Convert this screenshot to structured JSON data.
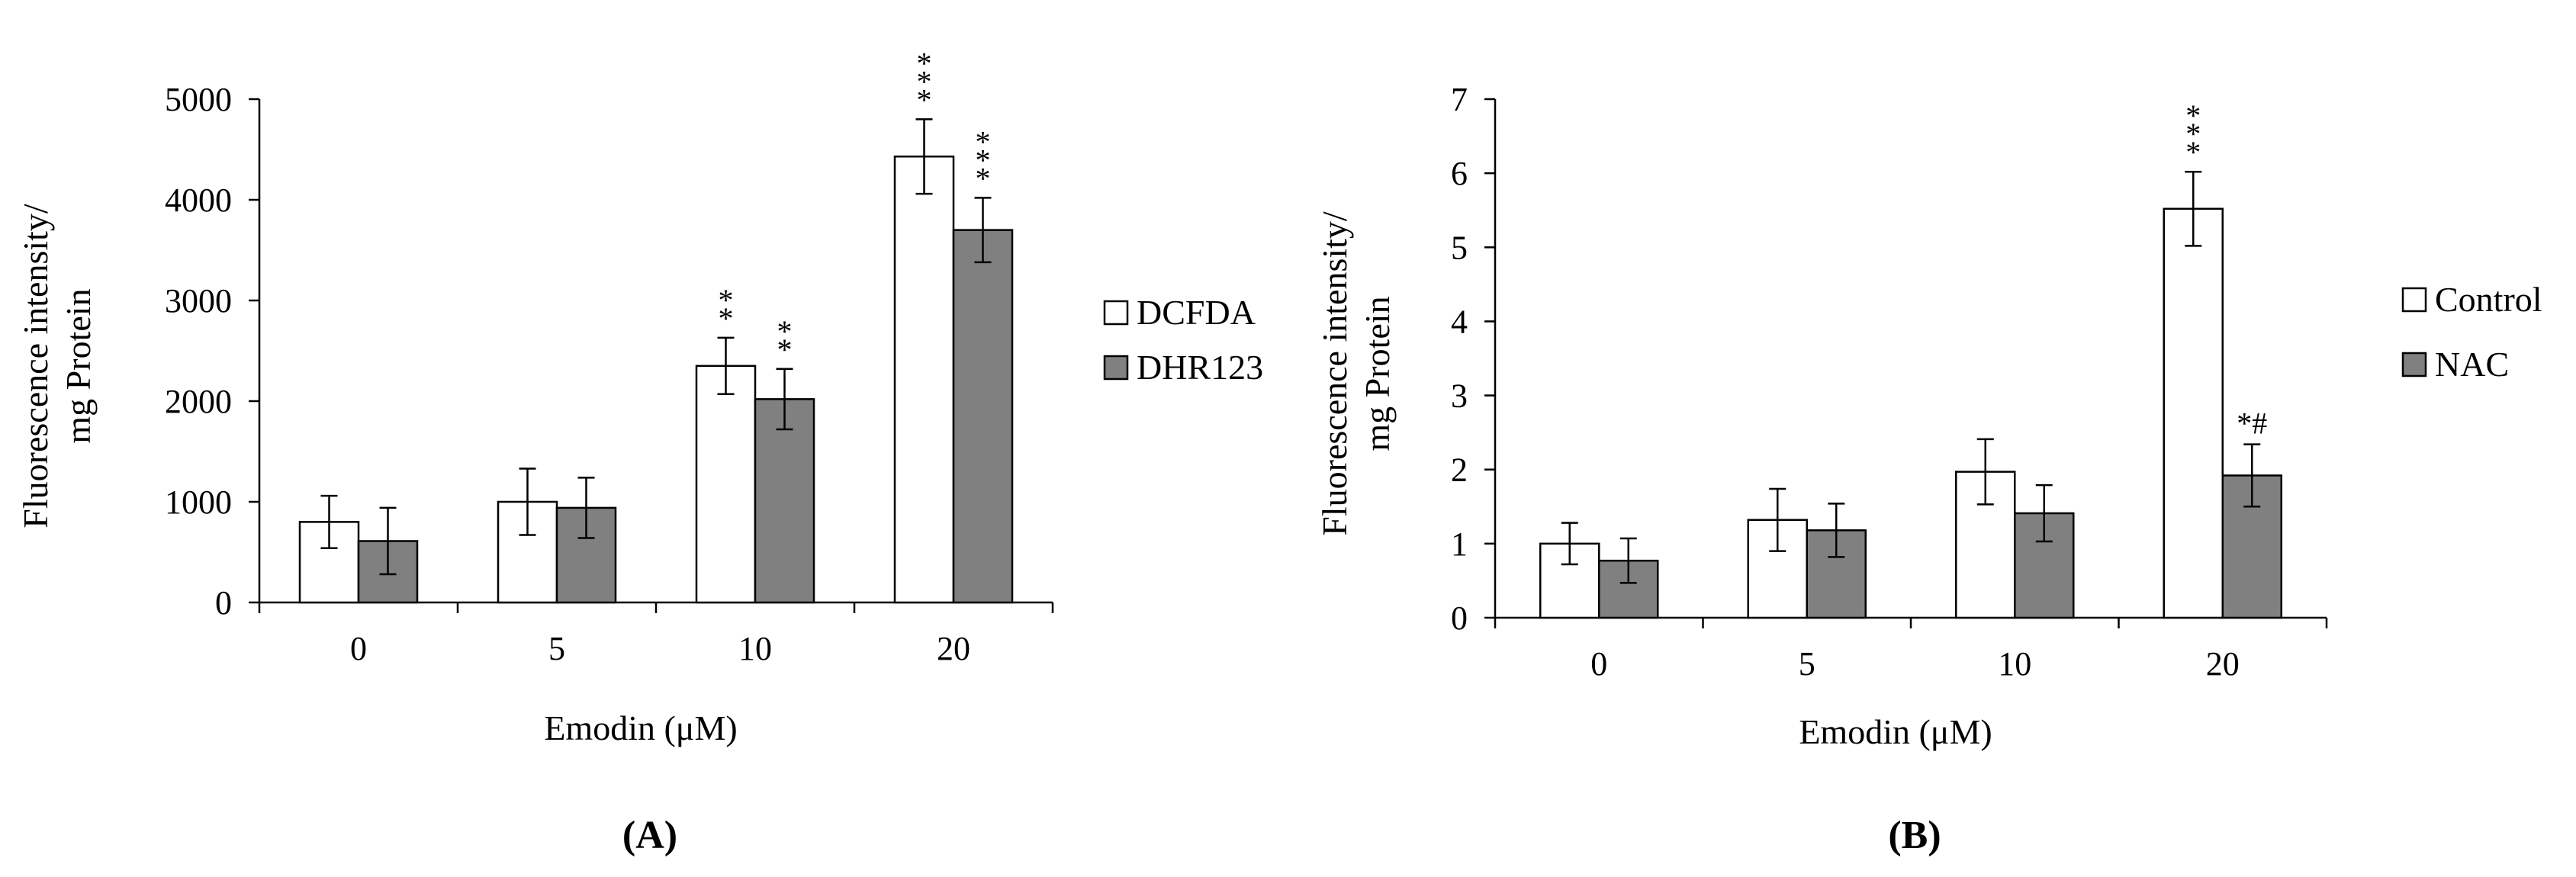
{
  "panel_labels": [
    "(A)",
    "(B)"
  ],
  "chart_data": [
    {
      "type": "bar",
      "categories": [
        "0",
        "5",
        "10",
        "20"
      ],
      "xlabel": "Emodin (μM)",
      "ylabel_lines": [
        "Fluorescence intensity/",
        "mg Protein"
      ],
      "ylim": [
        0,
        5000
      ],
      "yticks": [
        0,
        1000,
        2000,
        3000,
        4000,
        5000
      ],
      "legend_position": "right",
      "series": [
        {
          "name": "DCFDA",
          "color": "#ffffff",
          "values": [
            800,
            1000,
            2350,
            4430
          ],
          "errors": [
            260,
            330,
            280,
            370
          ],
          "annotations": [
            "",
            "",
            "**",
            "***"
          ]
        },
        {
          "name": "DHR123",
          "color": "#808080",
          "values": [
            610,
            940,
            2020,
            3700
          ],
          "errors": [
            330,
            300,
            300,
            320
          ],
          "annotations": [
            "",
            "",
            "**",
            "***"
          ]
        }
      ]
    },
    {
      "type": "bar",
      "categories": [
        "0",
        "5",
        "10",
        "20"
      ],
      "xlabel": "Emodin (μM)",
      "ylabel_lines": [
        "Fluorescence intensity/",
        "mg Protein"
      ],
      "ylim": [
        0,
        7
      ],
      "yticks": [
        0,
        1,
        2,
        3,
        4,
        5,
        6,
        7
      ],
      "legend_position": "right",
      "series": [
        {
          "name": "Control",
          "color": "#ffffff",
          "values": [
            1.0,
            1.32,
            1.97,
            5.52
          ],
          "errors": [
            0.28,
            0.42,
            0.44,
            0.5
          ],
          "annotations": [
            "",
            "",
            "",
            "***"
          ]
        },
        {
          "name": "NAC",
          "color": "#808080",
          "values": [
            0.77,
            1.18,
            1.41,
            1.92
          ],
          "errors": [
            0.3,
            0.36,
            0.38,
            0.42
          ],
          "annotations": [
            "",
            "",
            "",
            "*#"
          ]
        }
      ]
    }
  ]
}
